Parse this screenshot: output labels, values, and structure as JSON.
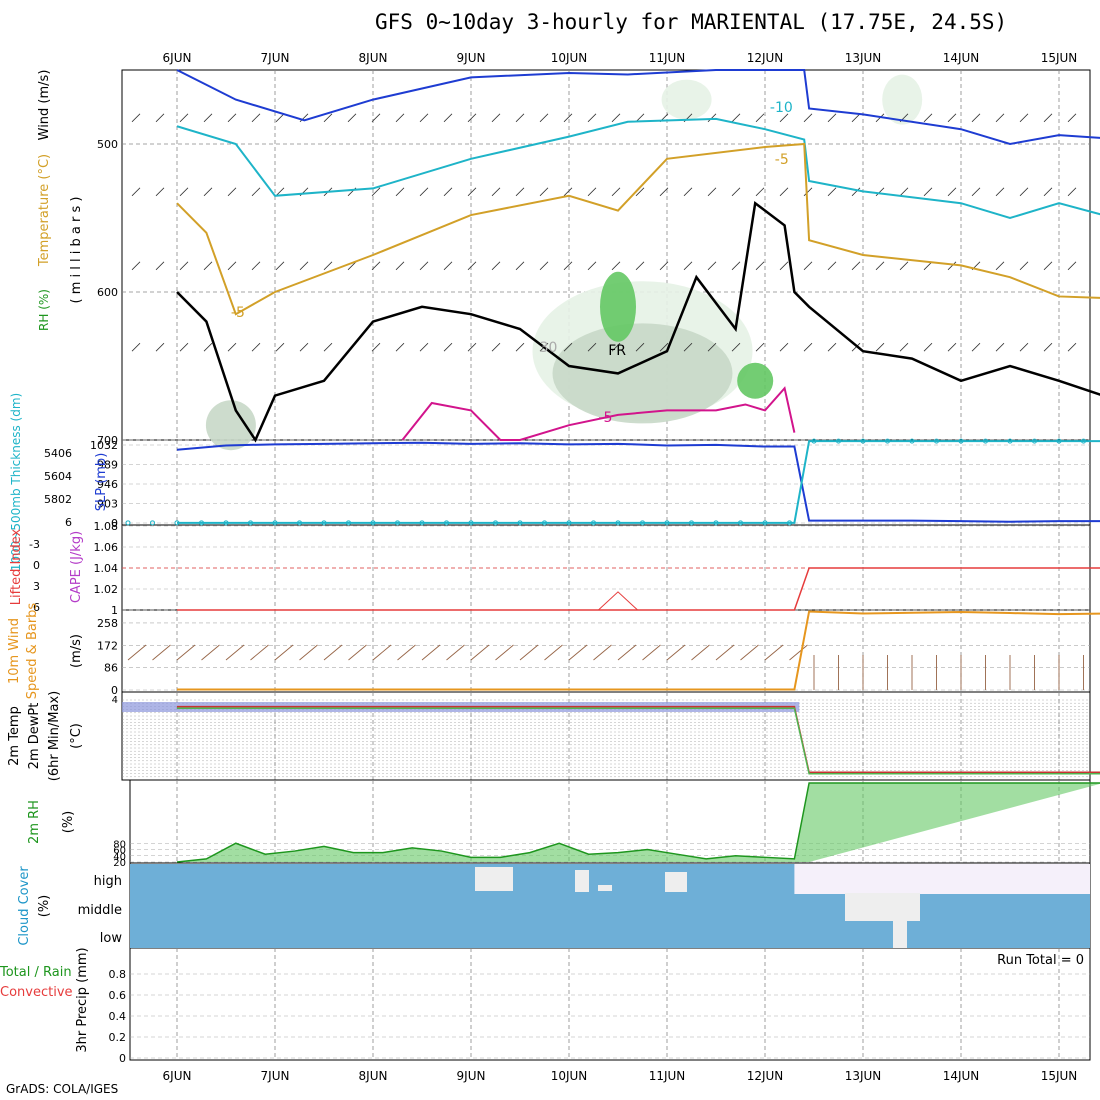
{
  "title": "GFS 0~10day 3-hourly for MARIENTAL (17.75E, 24.5S)",
  "credit": "GrADS: COLA/IGES",
  "days": [
    "6JUN",
    "7JUN",
    "8JUN",
    "9JUN",
    "10JUN",
    "11JUN",
    "12JUN",
    "13JUN",
    "14JUN",
    "15JUN"
  ],
  "chart_data": [
    {
      "type": "area",
      "name_panel": "upper-air",
      "ylabel_parts": [
        "RH (%)",
        "Temperature (°C)",
        "Wind (m/s)"
      ],
      "ylabel2": "( m i l l i b a r s )",
      "yticks": [
        500,
        600,
        700
      ],
      "ylim": [
        700,
        450
      ],
      "contour_labels": [
        "-10",
        "-5",
        "-5",
        "-5",
        "30",
        "FR"
      ],
      "series": [
        {
          "label": "-10",
          "color": "#1e3cd2",
          "x": [
            0,
            0.6,
            1.3,
            2.0,
            3.0,
            4.0,
            4.6,
            5.5,
            6.4,
            6.45,
            7.0,
            8.0,
            8.5,
            9.0,
            9.45
          ],
          "y": [
            445,
            470,
            484,
            470,
            455,
            452,
            453,
            450,
            450,
            476,
            480,
            490,
            500,
            494,
            496
          ]
        },
        {
          "label": "-10",
          "color": "#1eb4c8",
          "x": [
            0,
            0.6,
            1.0,
            2.0,
            3.0,
            4.0,
            4.6,
            5.5,
            6.0,
            6.4,
            6.45,
            7.0,
            8.0,
            8.5,
            9.0,
            9.45
          ],
          "y": [
            488,
            500,
            535,
            530,
            510,
            495,
            485,
            483,
            490,
            497,
            525,
            532,
            540,
            550,
            540,
            548
          ]
        },
        {
          "label": "-5",
          "color": "#d2a028",
          "x": [
            0,
            0.3,
            0.6,
            1.0,
            2.0,
            3.0,
            4.0,
            4.5,
            5.0,
            6.0,
            6.4,
            6.45,
            7.0,
            8.0,
            8.5,
            9.0,
            9.45
          ],
          "y": [
            540,
            560,
            615,
            600,
            575,
            548,
            535,
            545,
            510,
            502,
            500,
            565,
            575,
            582,
            590,
            603,
            604
          ]
        },
        {
          "label": "FR",
          "color": "#000000",
          "x": [
            0,
            0.3,
            0.6,
            0.8,
            1.0,
            1.5,
            2.0,
            2.5,
            3.0,
            3.5,
            4.0,
            4.5,
            5.0,
            5.3,
            5.7,
            5.9,
            6.2,
            6.3,
            6.45,
            7.0,
            7.5,
            8.0,
            8.5,
            9.0,
            9.45
          ],
          "y": [
            600,
            620,
            680,
            700,
            670,
            660,
            620,
            610,
            615,
            625,
            650,
            655,
            640,
            590,
            625,
            540,
            555,
            600,
            610,
            640,
            645,
            660,
            650,
            660,
            670
          ]
        },
        {
          "label": "-5",
          "color": "#d2148c",
          "x": [
            2.3,
            2.6,
            3.0,
            3.3,
            3.5,
            4.0,
            4.5,
            5.0,
            5.5,
            5.8,
            6.0,
            6.2,
            6.3
          ],
          "y": [
            700,
            675,
            680,
            700,
            710,
            690,
            683,
            680,
            680,
            676,
            680,
            665,
            695
          ]
        }
      ]
    },
    {
      "type": "line",
      "name_panel": "thickness-slp",
      "ylabel": "1000~500mb Thickness (dm)",
      "ylabel2": "SLP (mb)",
      "yticks_left": [
        "6",
        "5802",
        "5604",
        "5406"
      ],
      "yticks_right": [
        "0",
        "903",
        "946",
        "989",
        "1032"
      ],
      "series": [
        {
          "name": "SLP (mb)",
          "color": "#1e3cd2",
          "x": [
            0,
            0.5,
            1,
            1.5,
            2,
            2.5,
            3,
            3.5,
            4,
            4.5,
            5,
            5.5,
            6,
            6.3,
            6.45,
            7,
            7.5,
            8,
            8.5,
            9,
            9.45
          ],
          "y": [
            1018,
            1026,
            1028,
            1029,
            1030,
            1031,
            1029,
            1030,
            1028,
            1029,
            1026,
            1027,
            1024,
            1024,
            888,
            888,
            888,
            887,
            886,
            887,
            887
          ]
        },
        {
          "name": "1000~500mb Thickness (dm)",
          "color": "#1eb4c8",
          "x": [
            0,
            6.3,
            6.45,
            9.45
          ],
          "y": [
            884,
            884,
            1034,
            1034
          ]
        }
      ]
    },
    {
      "type": "line",
      "name_panel": "cape-li",
      "ylabel": "Lifted Index",
      "ylabel2": "CAPE (J/kg)",
      "yticks_left": [
        "-3",
        "0",
        "3",
        "6"
      ],
      "yticks_right": [
        "1",
        "1.02",
        "1.04",
        "1.06",
        "1.08"
      ],
      "series": [
        {
          "name": "CAPE (J/kg)",
          "color": "#b43cc8",
          "x": [
            4.3,
            4.5,
            4.7
          ],
          "y": [
            1.0,
            1.017,
            1.0
          ]
        },
        {
          "name": "Lifted Index",
          "color": "#e63c3c",
          "x": [
            0,
            6.3,
            6.45,
            9.45
          ],
          "y": [
            6,
            6,
            0,
            0
          ]
        }
      ]
    },
    {
      "type": "line",
      "name_panel": "wind10m",
      "ylabel": "10m Wind",
      "ylabel2": "Speed & Barbs",
      "ylabel3": "(m/s)",
      "yticks": [
        "0",
        "86",
        "172",
        "258"
      ],
      "series": [
        {
          "name": "Speed",
          "color": "#e6961e",
          "x": [
            0,
            6.3,
            6.45,
            7,
            7.5,
            8,
            8.5,
            9,
            9.45
          ],
          "y": [
            2,
            2,
            302,
            294,
            297,
            300,
            296,
            292,
            294
          ]
        }
      ]
    },
    {
      "type": "line",
      "name_panel": "temp2m",
      "ylabel": "2m Temp",
      "ylabel2": "2m DewPt",
      "ylabel3": "(6hr Min/Max)",
      "ylabel4": "(°C)",
      "tick_label": "4",
      "series": [
        {
          "name": "2m Temp",
          "color": "#c83232",
          "x": [
            0,
            6.3,
            6.45,
            9.45
          ],
          "y": [
            0.94,
            0.94,
            0.1,
            0.1
          ]
        },
        {
          "name": "2m DewPt",
          "color": "#50b450",
          "x": [
            0,
            6.3,
            6.45,
            9.45
          ],
          "y": [
            0.92,
            0.92,
            0.08,
            0.08
          ]
        }
      ]
    },
    {
      "type": "area",
      "name_panel": "rh2m",
      "ylabel": "2m RH",
      "ylabel2": "(%)",
      "yticks": [
        "20",
        "40",
        "60",
        "80"
      ],
      "series": [
        {
          "name": "2m RH",
          "color": "#1e961e",
          "x": [
            0,
            0.3,
            0.6,
            0.9,
            1.2,
            1.5,
            1.8,
            2.1,
            2.4,
            2.7,
            3.0,
            3.3,
            3.6,
            3.9,
            4.2,
            4.5,
            4.8,
            5.1,
            5.4,
            5.7,
            6.0,
            6.3,
            6.45,
            9.45
          ],
          "y": [
            20,
            30,
            80,
            45,
            55,
            70,
            50,
            50,
            65,
            55,
            35,
            35,
            50,
            80,
            45,
            50,
            60,
            45,
            30,
            40,
            35,
            30,
            900,
            900
          ]
        }
      ]
    },
    {
      "type": "heatmap",
      "name_panel": "cloud-cover",
      "ylabel": "Cloud Cover",
      "ylabel2": "(%)",
      "yticks": [
        "high",
        "middle",
        "low"
      ],
      "switch_day": 6.3
    },
    {
      "type": "line",
      "name_panel": "precip",
      "ylabel": "Total / Rain",
      "ylabel2": "Convective",
      "ylabel3": "3hr Precip (mm)",
      "yticks": [
        "0",
        "0.2",
        "0.4",
        "0.6",
        "0.8"
      ],
      "run_total": "Run Total = 0",
      "series": []
    }
  ]
}
